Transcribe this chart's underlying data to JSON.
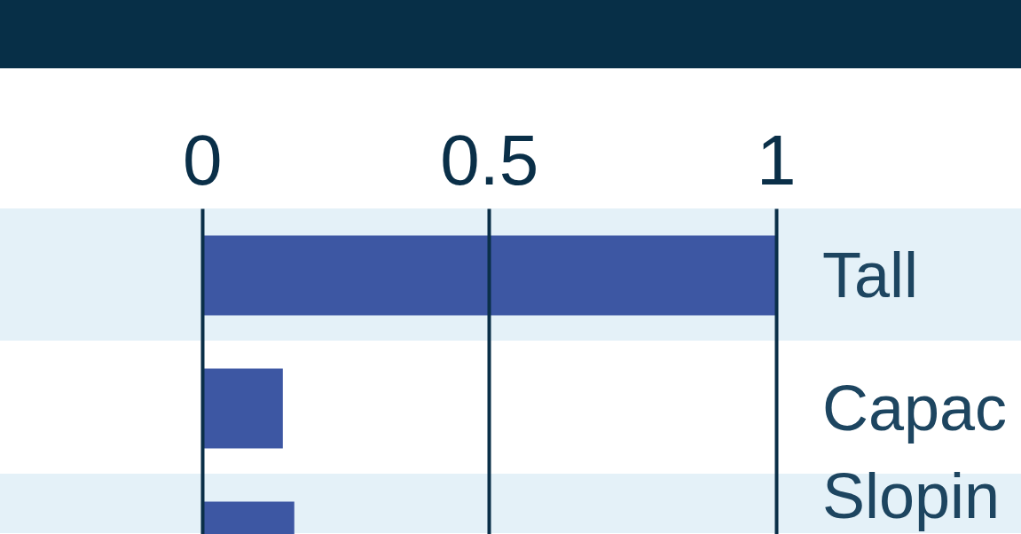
{
  "chart_data": {
    "type": "bar",
    "orientation": "horizontal",
    "categories": [
      "Tall",
      "Capac",
      "Slopin"
    ],
    "values": [
      1.0,
      0.14,
      0.16
    ],
    "color": "#3d57a3",
    "xlim": [
      -0.352,
      1.427
    ],
    "xticks": [
      0,
      0.5,
      1
    ],
    "grid": "x",
    "tick_labels": "x"
  }
}
